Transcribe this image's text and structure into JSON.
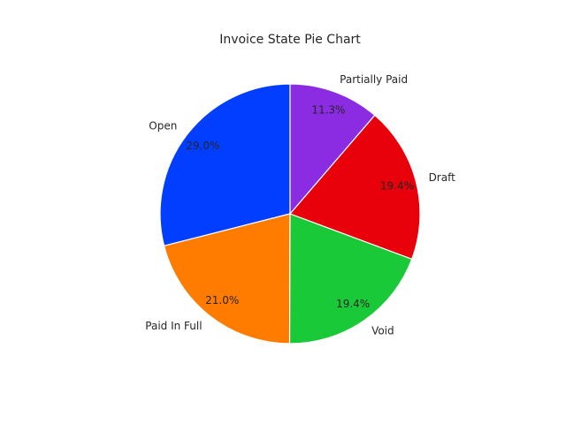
{
  "chart_data": {
    "type": "pie",
    "title": "Invoice State Pie Chart",
    "labels": [
      "Open",
      "Paid In Full",
      "Void",
      "Draft",
      "Partially Paid"
    ],
    "values": [
      29.0,
      21.0,
      19.4,
      19.4,
      11.3
    ],
    "percent_labels": [
      "29.0%",
      "21.0%",
      "19.4%",
      "19.4%",
      "11.3%"
    ],
    "colors": [
      "#023eff",
      "#ff7c00",
      "#1ac938",
      "#e8000b",
      "#8b2be2"
    ],
    "start_angle_deg": 90,
    "direction": "counterclockwise",
    "legend": "none"
  }
}
